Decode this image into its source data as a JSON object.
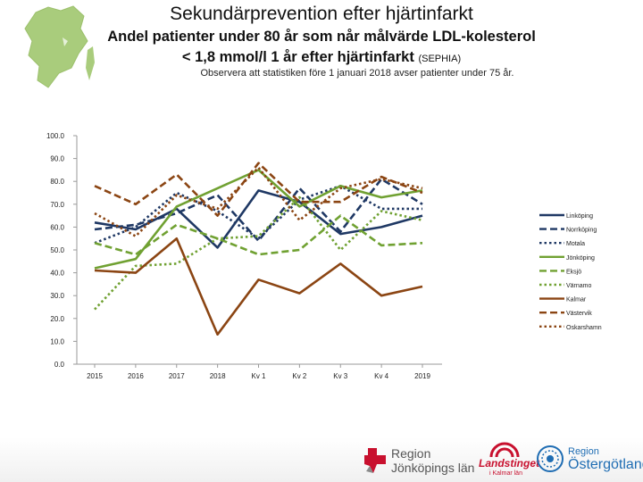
{
  "header": {
    "title": "Sekundärprevention efter hjärtinfarkt",
    "subtitle_line1": "Andel patienter under 80 år som når målvärde LDL-kolesterol",
    "subtitle_line2": "< 1,8 mmol/l 1 år efter hjärtinfarkt",
    "subtitle_source": "(SEPHIA)",
    "note": "Observera att statistiken före 1 januari  2018 avser patienter under 75 år."
  },
  "chart_data": {
    "type": "line",
    "categories": [
      "2015",
      "2016",
      "2017",
      "2018",
      "Kv 1",
      "Kv 2",
      "Kv 3",
      "Kv 4",
      "2019"
    ],
    "ylim": [
      0,
      100
    ],
    "yticks": [
      "0.0",
      "10.0",
      "20.0",
      "30.0",
      "40.0",
      "50.0",
      "60.0",
      "70.0",
      "80.0",
      "90.0",
      "100.0"
    ],
    "legend_position": "right",
    "series": [
      {
        "name": "Linköping",
        "color": "#1f3864",
        "dash": "solid",
        "values": [
          62,
          59,
          68,
          51,
          76,
          71,
          57,
          60,
          65
        ]
      },
      {
        "name": "Norrköping",
        "color": "#1f3864",
        "dash": "dashed",
        "values": [
          59,
          61,
          66,
          74,
          54,
          77,
          58,
          81,
          70
        ]
      },
      {
        "name": "Motala",
        "color": "#1f3864",
        "dash": "dotted",
        "values": [
          53,
          60,
          75,
          67,
          55,
          72,
          78,
          68,
          68
        ]
      },
      {
        "name": "Jönköping",
        "color": "#70a132",
        "dash": "solid",
        "values": [
          42,
          46,
          69,
          77,
          85,
          69,
          78,
          73,
          76
        ]
      },
      {
        "name": "Eksjö",
        "color": "#70a132",
        "dash": "dashed",
        "values": [
          53,
          48,
          61,
          55,
          48,
          50,
          65,
          52,
          53
        ]
      },
      {
        "name": "Värnamo",
        "color": "#70a132",
        "dash": "dotted",
        "values": [
          24,
          43,
          44,
          55,
          56,
          73,
          50,
          67,
          63
        ]
      },
      {
        "name": "Kalmar",
        "color": "#8b4513",
        "dash": "solid",
        "values": [
          41,
          40,
          55,
          13,
          37,
          31,
          44,
          30,
          34
        ]
      },
      {
        "name": "Västervik",
        "color": "#8b4513",
        "dash": "dashed",
        "values": [
          78,
          70,
          83,
          65,
          88,
          71,
          71,
          82,
          75
        ]
      },
      {
        "name": "Oskarshamn",
        "color": "#8b4513",
        "dash": "dotted",
        "values": [
          66,
          56,
          74,
          68,
          86,
          63,
          77,
          81,
          77
        ]
      }
    ]
  },
  "logos": {
    "region_jonkoping": {
      "line1": "Region",
      "line2": "Jönköpings län",
      "color": "#555555",
      "accent": "#c8102e"
    },
    "landstinget_kalmar": {
      "line1": "Landstinget",
      "line2": "i Kalmar län",
      "color": "#c8102e"
    },
    "region_ostergotland": {
      "line1": "Region",
      "line2": "Östergötland",
      "color": "#1f6db3"
    }
  }
}
